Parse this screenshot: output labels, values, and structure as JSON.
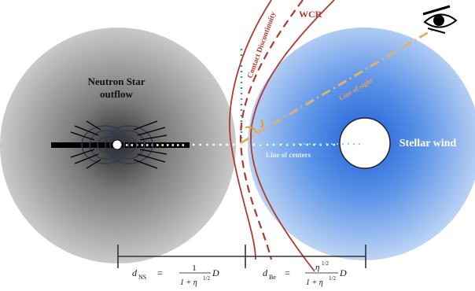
{
  "labels": {
    "neutron_star_line1": "Neutron Star",
    "neutron_star_line2": "outflow",
    "stellar_wind": "Stellar wind",
    "wcr": "WCR",
    "contact_discontinuity": "Contact Discontinuity",
    "line_of_sight": "Line of sight",
    "line_of_centers": "Line of centers"
  },
  "formulas": {
    "d_ns_symbol": "d",
    "d_ns_sub": "NS",
    "d_ns_numerator": "1",
    "d_ns_denominator": "1 + η",
    "d_be_symbol": "d",
    "d_be_sub": "Be",
    "d_be_numerator": "η",
    "d_be_denominator": "1 + η",
    "exponent": "1/2",
    "equals": "=",
    "distance": "D"
  },
  "icons": {
    "observer": "eye-icon"
  },
  "colors": {
    "neutron_star_gray": "#8c8c8c",
    "stellar_wind_blue": "#3f7fe0",
    "shock_red": "#b03a2e",
    "sight_line_orange": "#e0b070",
    "teal_dots": "#2aa39a"
  }
}
